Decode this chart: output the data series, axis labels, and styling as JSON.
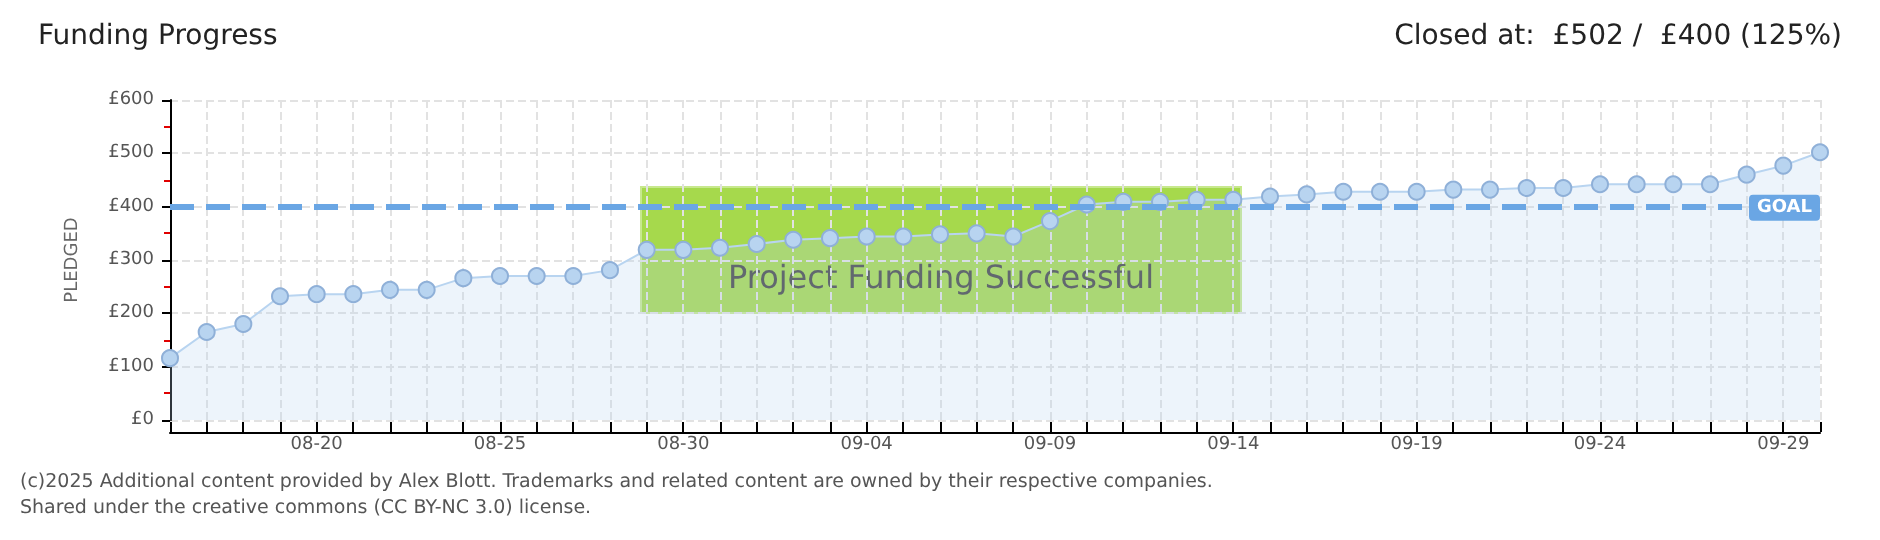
{
  "chart_data": {
    "type": "area",
    "title": "Funding Progress",
    "subtitle": "Closed at:  £502 /  £400 (125%)",
    "ylabel": "PLEDGED",
    "categories": [
      null,
      null,
      null,
      null,
      "08-20",
      null,
      null,
      null,
      null,
      "08-25",
      null,
      null,
      null,
      null,
      "08-30",
      null,
      null,
      null,
      null,
      "09-04",
      null,
      null,
      null,
      null,
      "09-09",
      null,
      null,
      null,
      null,
      "09-14",
      null,
      null,
      null,
      null,
      "09-19",
      null,
      null,
      null,
      null,
      "09-24",
      null,
      null,
      null,
      null,
      "09-29",
      null
    ],
    "series": [
      {
        "color": "#b8d4f0",
        "values": [
          116,
          165,
          180,
          232,
          236,
          236,
          244,
          244,
          266,
          270,
          270,
          270,
          281,
          319,
          319,
          323,
          330,
          338,
          341,
          344,
          344,
          348,
          350,
          344,
          373,
          404,
          409,
          409,
          413,
          413,
          419,
          423,
          428,
          428,
          428,
          432,
          432,
          435,
          435,
          442,
          442,
          442,
          442,
          460,
          477,
          502
        ]
      }
    ],
    "ylim": [
      0,
      600
    ],
    "yticks": [
      {
        "value": 0,
        "label": "£0"
      },
      {
        "value": 100,
        "label": "£100"
      },
      {
        "value": 200,
        "label": "£200"
      },
      {
        "value": 300,
        "label": "£300"
      },
      {
        "value": 400,
        "label": "£400"
      },
      {
        "value": 500,
        "label": "£500"
      },
      {
        "value": 600,
        "label": "£600"
      }
    ],
    "ref_lines": [
      {
        "axis": "y",
        "value": 400,
        "label": "GOAL",
        "color": "#6aa6e4",
        "line_style": "dashed"
      }
    ],
    "annotations": [
      "Project Funding Successful",
      "(c)2025 Additional content provided by Alex Blott. Trademarks and related content are owned by their respective companies.",
      "Shared under the creative commons (CC BY-NC 3.0) license."
    ],
    "grid": true,
    "legend": false,
    "marker": "circle",
    "line_style": "solid"
  }
}
